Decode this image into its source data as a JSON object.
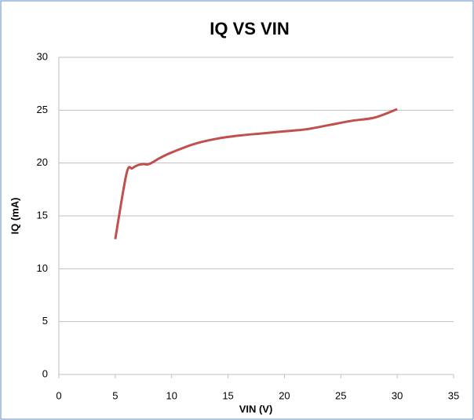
{
  "chart_data": {
    "type": "line",
    "title": "IQ VS VIN",
    "x_label": "VIN (V)",
    "y_label": "IQ (mA)",
    "x": [
      5,
      6,
      6.5,
      7,
      7.5,
      8,
      9,
      10,
      12,
      14,
      16,
      18,
      20,
      22,
      24,
      26,
      28,
      30
    ],
    "series": [
      {
        "name": "IQ",
        "color": "#c0504d",
        "values": [
          12.8,
          19.0,
          19.5,
          19.8,
          19.9,
          19.9,
          20.5,
          21.0,
          21.8,
          22.3,
          22.6,
          22.8,
          23.0,
          23.2,
          23.6,
          24.0,
          24.3,
          25.1
        ]
      }
    ],
    "xlim": [
      0,
      35
    ],
    "xticks": [
      0,
      5,
      10,
      15,
      20,
      25,
      30,
      35
    ],
    "ylim": [
      0,
      30
    ],
    "yticks": [
      0,
      5,
      10,
      15,
      20,
      25,
      30
    ],
    "grid": true
  }
}
